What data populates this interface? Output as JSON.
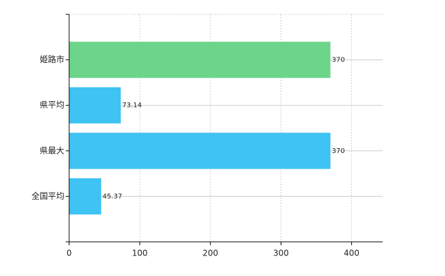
{
  "chart_data": {
    "type": "bar",
    "orientation": "horizontal",
    "categories": [
      "姫路市",
      "県平均",
      "県最大",
      "全国平均"
    ],
    "values": [
      370,
      73.14,
      370,
      45.37
    ],
    "colors": [
      "#6dd58a",
      "#3ec3f3",
      "#3ec3f3",
      "#3ec3f3"
    ],
    "xlim": [
      0,
      444
    ],
    "xticks": [
      0,
      100,
      200,
      300,
      400
    ],
    "grid": true
  }
}
